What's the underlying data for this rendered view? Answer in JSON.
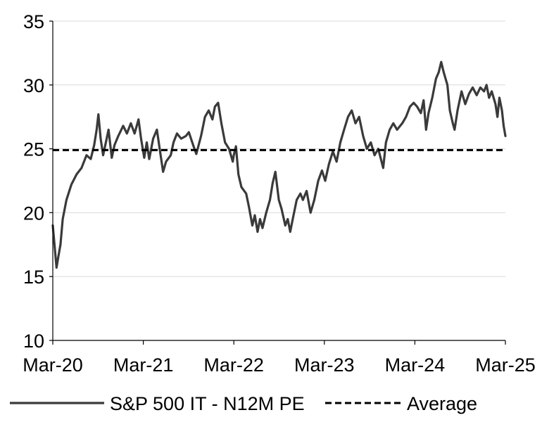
{
  "chart_data": {
    "type": "line",
    "x_ticks": [
      "Mar-20",
      "Mar-21",
      "Mar-22",
      "Mar-23",
      "Mar-24",
      "Mar-25"
    ],
    "y_ticks": [
      "10",
      "15",
      "20",
      "25",
      "30",
      "35"
    ],
    "ylim": [
      10,
      35
    ],
    "xlim": [
      "2020-03",
      "2025-03"
    ],
    "grid": "horizontal",
    "legend_position": "bottom",
    "series": [
      {
        "name": "S&P 500 IT - N12M PE",
        "color": "#3a3a3a",
        "style": "solid",
        "points": [
          [
            "2020-03-01",
            19.0
          ],
          [
            "2020-03-16",
            15.7
          ],
          [
            "2020-03-23",
            16.5
          ],
          [
            "2020-04-01",
            17.5
          ],
          [
            "2020-04-10",
            19.5
          ],
          [
            "2020-04-25",
            21.0
          ],
          [
            "2020-05-15",
            22.2
          ],
          [
            "2020-06-05",
            23.0
          ],
          [
            "2020-06-25",
            23.5
          ],
          [
            "2020-07-15",
            24.5
          ],
          [
            "2020-08-01",
            24.2
          ],
          [
            "2020-08-15",
            25.3
          ],
          [
            "2020-08-25",
            26.5
          ],
          [
            "2020-09-01",
            27.7
          ],
          [
            "2020-09-10",
            25.8
          ],
          [
            "2020-09-20",
            24.5
          ],
          [
            "2020-10-01",
            25.5
          ],
          [
            "2020-10-12",
            26.5
          ],
          [
            "2020-10-25",
            24.3
          ],
          [
            "2020-11-05",
            25.3
          ],
          [
            "2020-11-20",
            26.0
          ],
          [
            "2020-12-10",
            26.8
          ],
          [
            "2020-12-25",
            26.2
          ],
          [
            "2021-01-10",
            27.0
          ],
          [
            "2021-01-25",
            26.2
          ],
          [
            "2021-02-10",
            27.3
          ],
          [
            "2021-02-20",
            25.8
          ],
          [
            "2021-03-05",
            24.3
          ],
          [
            "2021-03-15",
            25.5
          ],
          [
            "2021-03-25",
            24.2
          ],
          [
            "2021-04-10",
            25.8
          ],
          [
            "2021-04-25",
            26.5
          ],
          [
            "2021-05-10",
            24.5
          ],
          [
            "2021-05-20",
            23.2
          ],
          [
            "2021-06-01",
            24.0
          ],
          [
            "2021-06-20",
            24.5
          ],
          [
            "2021-07-01",
            25.5
          ],
          [
            "2021-07-15",
            26.2
          ],
          [
            "2021-08-01",
            25.8
          ],
          [
            "2021-08-20",
            26.0
          ],
          [
            "2021-09-01",
            26.3
          ],
          [
            "2021-09-20",
            25.2
          ],
          [
            "2021-10-01",
            24.6
          ],
          [
            "2021-10-20",
            26.0
          ],
          [
            "2021-11-05",
            27.5
          ],
          [
            "2021-11-20",
            28.0
          ],
          [
            "2021-12-05",
            27.3
          ],
          [
            "2021-12-15",
            28.3
          ],
          [
            "2021-12-28",
            28.6
          ],
          [
            "2022-01-10",
            27.0
          ],
          [
            "2022-01-25",
            25.5
          ],
          [
            "2022-02-10",
            25.0
          ],
          [
            "2022-02-25",
            24.0
          ],
          [
            "2022-03-01",
            24.5
          ],
          [
            "2022-03-10",
            25.2
          ],
          [
            "2022-03-20",
            23.0
          ],
          [
            "2022-04-01",
            22.0
          ],
          [
            "2022-04-20",
            21.5
          ],
          [
            "2022-05-01",
            20.5
          ],
          [
            "2022-05-15",
            19.0
          ],
          [
            "2022-05-25",
            19.8
          ],
          [
            "2022-06-05",
            18.5
          ],
          [
            "2022-06-15",
            19.5
          ],
          [
            "2022-06-25",
            18.8
          ],
          [
            "2022-07-10",
            20.0
          ],
          [
            "2022-07-25",
            21.0
          ],
          [
            "2022-08-05",
            22.3
          ],
          [
            "2022-08-16",
            23.2
          ],
          [
            "2022-08-30",
            21.0
          ],
          [
            "2022-09-10",
            20.3
          ],
          [
            "2022-09-25",
            19.0
          ],
          [
            "2022-10-05",
            19.5
          ],
          [
            "2022-10-15",
            18.5
          ],
          [
            "2022-10-25",
            19.5
          ],
          [
            "2022-11-10",
            21.0
          ],
          [
            "2022-11-25",
            21.5
          ],
          [
            "2022-12-05",
            21.0
          ],
          [
            "2022-12-20",
            21.7
          ],
          [
            "2023-01-05",
            20.0
          ],
          [
            "2023-01-20",
            21.0
          ],
          [
            "2023-02-05",
            22.5
          ],
          [
            "2023-02-20",
            23.3
          ],
          [
            "2023-03-05",
            22.5
          ],
          [
            "2023-03-20",
            23.8
          ],
          [
            "2023-04-05",
            24.8
          ],
          [
            "2023-04-20",
            24.0
          ],
          [
            "2023-05-05",
            25.5
          ],
          [
            "2023-05-20",
            26.5
          ],
          [
            "2023-06-05",
            27.5
          ],
          [
            "2023-06-20",
            28.0
          ],
          [
            "2023-07-05",
            27.0
          ],
          [
            "2023-07-20",
            27.5
          ],
          [
            "2023-08-05",
            26.0
          ],
          [
            "2023-08-20",
            25.0
          ],
          [
            "2023-09-05",
            25.5
          ],
          [
            "2023-09-20",
            24.5
          ],
          [
            "2023-10-05",
            25.0
          ],
          [
            "2023-10-25",
            23.5
          ],
          [
            "2023-11-05",
            25.5
          ],
          [
            "2023-11-20",
            26.5
          ],
          [
            "2023-12-05",
            27.0
          ],
          [
            "2023-12-20",
            26.5
          ],
          [
            "2024-01-10",
            27.0
          ],
          [
            "2024-01-25",
            27.5
          ],
          [
            "2024-02-10",
            28.3
          ],
          [
            "2024-02-25",
            28.6
          ],
          [
            "2024-03-10",
            28.3
          ],
          [
            "2024-03-25",
            27.8
          ],
          [
            "2024-04-05",
            28.8
          ],
          [
            "2024-04-15",
            26.5
          ],
          [
            "2024-04-25",
            27.8
          ],
          [
            "2024-05-10",
            29.0
          ],
          [
            "2024-05-25",
            30.5
          ],
          [
            "2024-06-05",
            31.0
          ],
          [
            "2024-06-15",
            31.8
          ],
          [
            "2024-06-25",
            31.0
          ],
          [
            "2024-07-10",
            30.0
          ],
          [
            "2024-07-20",
            28.0
          ],
          [
            "2024-08-01",
            27.0
          ],
          [
            "2024-08-08",
            26.5
          ],
          [
            "2024-08-20",
            28.0
          ],
          [
            "2024-09-05",
            29.5
          ],
          [
            "2024-09-20",
            28.5
          ],
          [
            "2024-10-05",
            29.3
          ],
          [
            "2024-10-20",
            29.8
          ],
          [
            "2024-11-05",
            29.2
          ],
          [
            "2024-11-20",
            29.8
          ],
          [
            "2024-12-05",
            29.5
          ],
          [
            "2024-12-15",
            30.0
          ],
          [
            "2024-12-25",
            29.0
          ],
          [
            "2025-01-05",
            29.5
          ],
          [
            "2025-01-20",
            28.5
          ],
          [
            "2025-01-28",
            27.5
          ],
          [
            "2025-02-05",
            29.0
          ],
          [
            "2025-02-15",
            28.0
          ],
          [
            "2025-02-22",
            26.8
          ],
          [
            "2025-03-01",
            26.0
          ]
        ]
      },
      {
        "name": "Average",
        "color": "#000000",
        "style": "dashed",
        "value": 24.9
      }
    ]
  }
}
